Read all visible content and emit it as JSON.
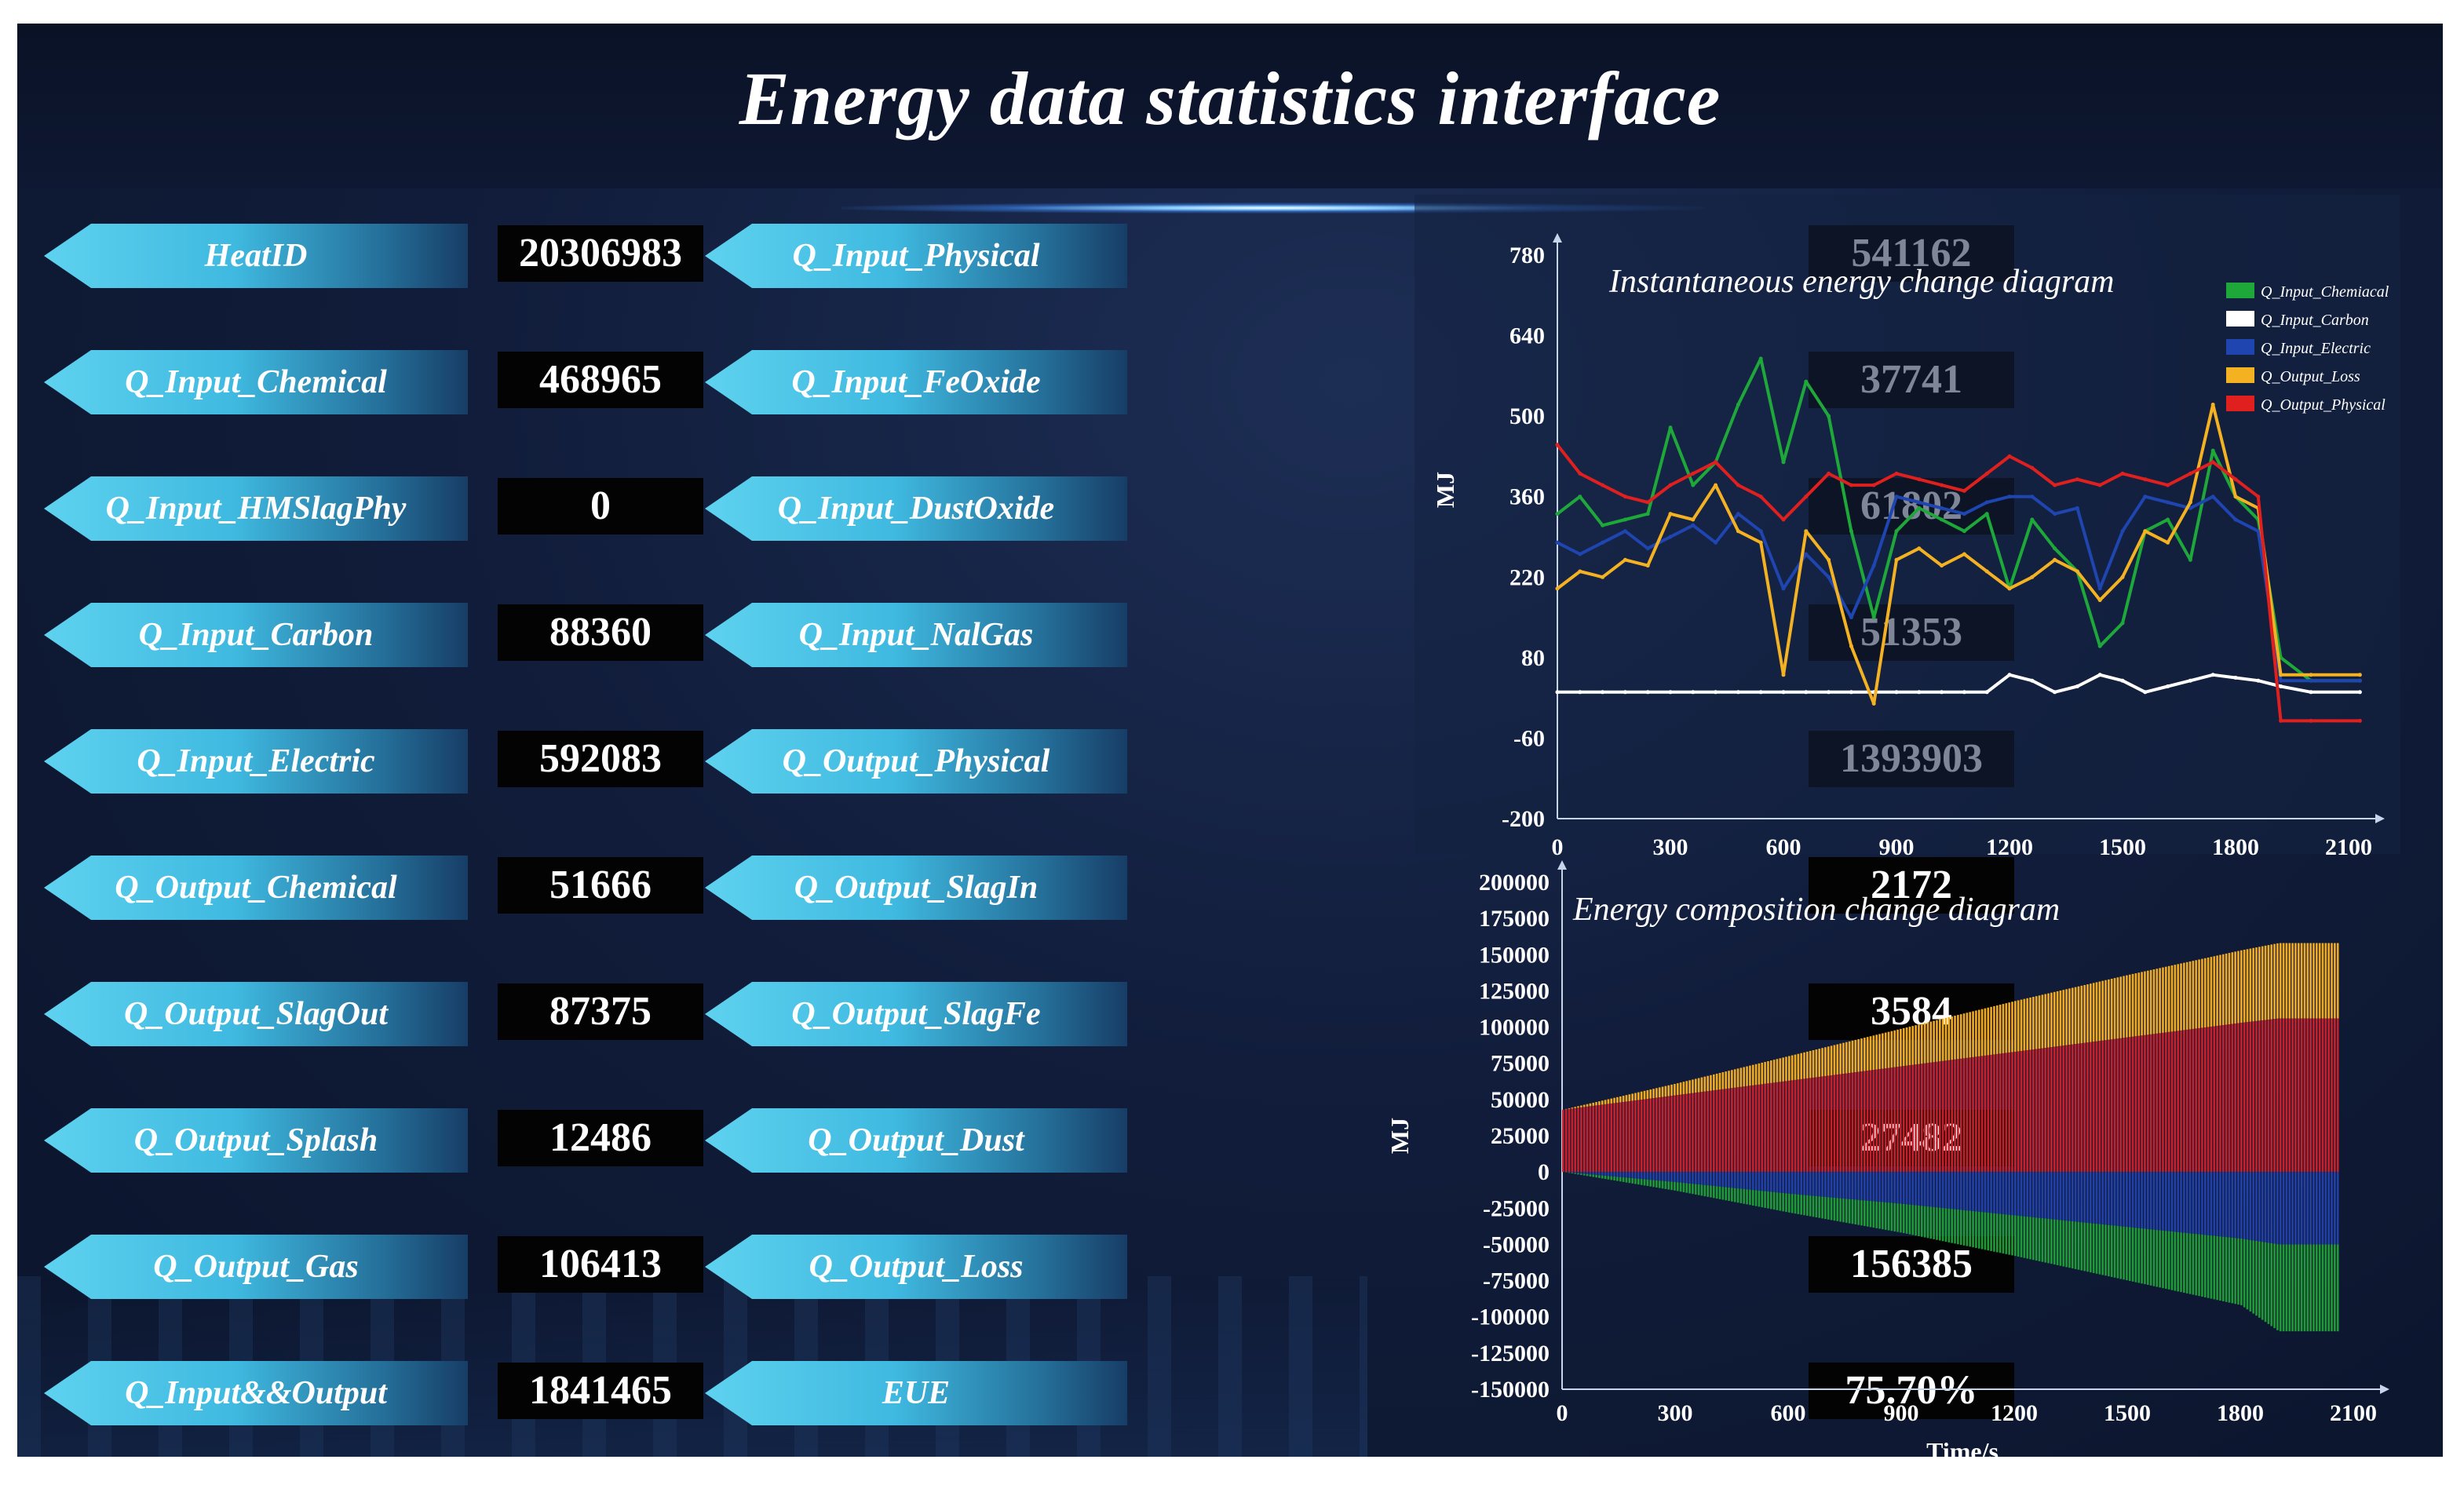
{
  "title": "Energy data statistics interface",
  "fields_left": [
    {
      "label": "HeatID",
      "value": "20306983"
    },
    {
      "label": "Q_Input_Chemical",
      "value": "468965"
    },
    {
      "label": "Q_Input_HMSlagPhy",
      "value": "0"
    },
    {
      "label": "Q_Input_Carbon",
      "value": "88360"
    },
    {
      "label": "Q_Input_Electric",
      "value": "592083"
    },
    {
      "label": "Q_Output_Chemical",
      "value": "51666"
    },
    {
      "label": "Q_Output_SlagOut",
      "value": "87375"
    },
    {
      "label": "Q_Output_Splash",
      "value": "12486"
    },
    {
      "label": "Q_Output_Gas",
      "value": "106413"
    },
    {
      "label": "Q_Input&&Output",
      "value": "1841465"
    }
  ],
  "fields_right": [
    {
      "label": "Q_Input_Physical",
      "value": "541162"
    },
    {
      "label": "Q_Input_FeOxide",
      "value": "37741"
    },
    {
      "label": "Q_Input_DustOxide",
      "value": "61802"
    },
    {
      "label": "Q_Input_NalGas",
      "value": "51353"
    },
    {
      "label": "Q_Output_Physical",
      "value": "1393903"
    },
    {
      "label": "Q_Output_SlagIn",
      "value": "2172"
    },
    {
      "label": "Q_Output_SlagFe",
      "value": "3584"
    },
    {
      "label": "Q_Output_Dust",
      "value": "27482"
    },
    {
      "label": "Q_Output_Loss",
      "value": "156385"
    },
    {
      "label": "EUE",
      "value": "75.70%"
    }
  ],
  "chart_data": [
    {
      "type": "line",
      "title": "Instantaneous energy change diagram",
      "xlabel": "",
      "ylabel": "MJ",
      "xlim": [
        0,
        2150
      ],
      "ylim": [
        -200,
        780
      ],
      "x_ticks": [
        "0",
        "300",
        "600",
        "900",
        "1200",
        "1500",
        "1800",
        "2100"
      ],
      "y_ticks": [
        "780",
        "640",
        "500",
        "360",
        "220",
        "80",
        "-60",
        "-200"
      ],
      "x": [
        0,
        60,
        120,
        180,
        240,
        300,
        360,
        420,
        480,
        540,
        600,
        660,
        720,
        780,
        840,
        900,
        960,
        1020,
        1080,
        1140,
        1200,
        1260,
        1320,
        1380,
        1440,
        1500,
        1560,
        1620,
        1680,
        1740,
        1800,
        1860,
        1920,
        2000,
        2130
      ],
      "series": [
        {
          "name": "Q_Input_Chemiacal",
          "color": "#1fa83a",
          "values": [
            330,
            360,
            310,
            320,
            330,
            480,
            380,
            420,
            520,
            600,
            420,
            560,
            500,
            300,
            150,
            300,
            340,
            320,
            300,
            330,
            200,
            320,
            270,
            230,
            100,
            140,
            300,
            320,
            250,
            440,
            360,
            320,
            80,
            40,
            40
          ]
        },
        {
          "name": "Q_Input_Carbon",
          "color": "#ffffff",
          "values": [
            20,
            20,
            20,
            20,
            20,
            20,
            20,
            20,
            20,
            20,
            20,
            20,
            20,
            20,
            20,
            20,
            20,
            20,
            20,
            20,
            50,
            40,
            20,
            30,
            50,
            40,
            20,
            30,
            40,
            50,
            45,
            40,
            30,
            20,
            20
          ]
        },
        {
          "name": "Q_Input_Electric",
          "color": "#1f45b0",
          "values": [
            280,
            260,
            280,
            300,
            270,
            290,
            310,
            280,
            330,
            300,
            200,
            260,
            220,
            150,
            240,
            360,
            350,
            340,
            330,
            350,
            360,
            360,
            330,
            340,
            200,
            300,
            360,
            350,
            340,
            360,
            320,
            300,
            40,
            40,
            40
          ]
        },
        {
          "name": "Q_Output_Loss",
          "color": "#f4b223",
          "values": [
            200,
            230,
            220,
            250,
            240,
            330,
            320,
            380,
            300,
            280,
            50,
            300,
            250,
            100,
            0,
            250,
            270,
            240,
            260,
            230,
            200,
            220,
            250,
            230,
            180,
            220,
            300,
            280,
            350,
            520,
            360,
            340,
            50,
            50,
            50
          ]
        },
        {
          "name": "Q_Output_Physical",
          "color": "#e0201f",
          "values": [
            450,
            400,
            380,
            360,
            350,
            380,
            400,
            420,
            380,
            360,
            320,
            360,
            400,
            380,
            380,
            400,
            390,
            380,
            370,
            400,
            430,
            410,
            380,
            390,
            380,
            400,
            390,
            380,
            400,
            420,
            390,
            360,
            -30,
            -30,
            -30
          ]
        }
      ]
    },
    {
      "type": "bar",
      "title": "Energy composition change diagram",
      "xlabel": "Time/s",
      "ylabel": "MJ",
      "xlim": [
        0,
        2150
      ],
      "ylim": [
        -150000,
        200000
      ],
      "x_ticks": [
        "0",
        "300",
        "600",
        "900",
        "1200",
        "1500",
        "1800",
        "2100"
      ],
      "y_ticks": [
        "200000",
        "175000",
        "150000",
        "125000",
        "100000",
        "75000",
        "50000",
        "25000",
        "0",
        "-25000",
        "-50000",
        "-75000",
        "-100000",
        "-125000",
        "-150000"
      ],
      "x": [
        0,
        300,
        600,
        900,
        1200,
        1500,
        1800,
        1900,
        2150
      ],
      "series": [
        {
          "name": "Q_Output_Physical",
          "color": "#c8202a",
          "values": [
            43000,
            53000,
            63000,
            73000,
            83000,
            93000,
            103000,
            106000,
            106000
          ]
        },
        {
          "name": "Q_Output_Loss",
          "color": "#f0aa22",
          "values": [
            0,
            8000,
            17000,
            26000,
            35000,
            43000,
            50000,
            52000,
            52000
          ]
        },
        {
          "name": "Q_Input_Electric",
          "color": "#2140a8",
          "values": [
            0,
            -7000,
            -15000,
            -22000,
            -30000,
            -38000,
            -46000,
            -50000,
            -50000
          ]
        },
        {
          "name": "Q_Input_Chemiacal",
          "color": "#1e9a36",
          "values": [
            0,
            -6000,
            -13000,
            -20000,
            -28000,
            -37000,
            -46000,
            -60000,
            -60000
          ]
        }
      ]
    }
  ]
}
